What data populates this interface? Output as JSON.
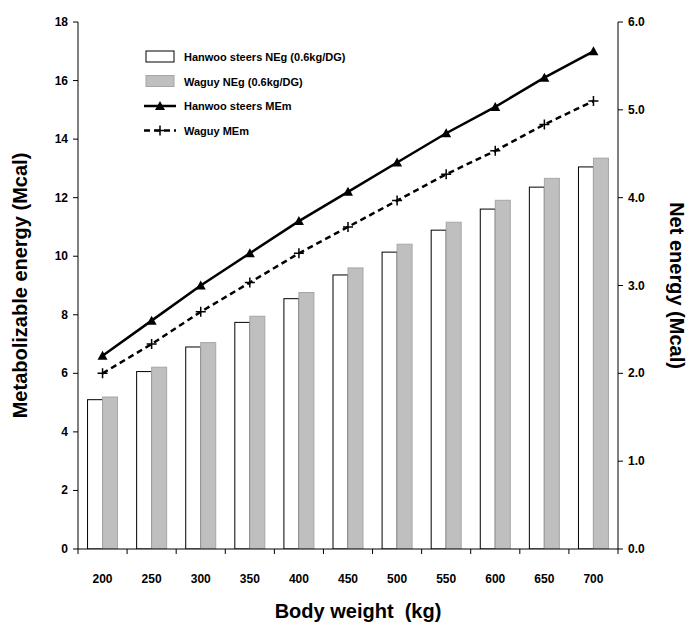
{
  "chart_data": {
    "type": "bar",
    "x_label": "Body weight  (kg)",
    "y_label": "Metabolizable energy (Mcal)",
    "y2_label": "Net energy (Mcal)",
    "categories": [
      "200",
      "250",
      "300",
      "350",
      "400",
      "450",
      "500",
      "550",
      "600",
      "650",
      "700"
    ],
    "ylim": [
      0,
      18
    ],
    "yticks": [
      0,
      2,
      4,
      6,
      8,
      10,
      12,
      14,
      16,
      18
    ],
    "y2lim": [
      0,
      6
    ],
    "y2ticks": [
      {
        "value": 0,
        "label": "0.0"
      },
      {
        "value": 1,
        "label": "1.0"
      },
      {
        "value": 2,
        "label": "2.0"
      },
      {
        "value": 3,
        "label": "3.0"
      },
      {
        "value": 4,
        "label": "4.0"
      },
      {
        "value": 5,
        "label": "5.0"
      },
      {
        "value": 6,
        "label": "6.0"
      }
    ],
    "grid": false,
    "legend": "upper left",
    "series": [
      {
        "name": "Hanwoo steers NEg (0.6kg/DG)",
        "type": "bar",
        "axis": "y2",
        "color": "#ffffff",
        "values": [
          1.7,
          2.02,
          2.3,
          2.58,
          2.85,
          3.12,
          3.38,
          3.63,
          3.87,
          4.12,
          4.35
        ]
      },
      {
        "name": "Waguy NEg (0.6kg/DG)",
        "type": "bar",
        "axis": "y2",
        "color": "#bfbfbf",
        "values": [
          1.73,
          2.07,
          2.35,
          2.65,
          2.92,
          3.2,
          3.47,
          3.72,
          3.97,
          4.22,
          4.45
        ]
      },
      {
        "name": "Hanwoo steers MEm",
        "type": "line",
        "color": "#000000",
        "marker": "triangle",
        "line_style": "solid",
        "values": [
          6.6,
          7.8,
          9.0,
          10.1,
          11.2,
          12.2,
          13.2,
          14.2,
          15.1,
          16.1,
          17.0
        ]
      },
      {
        "name": "Waguy MEm",
        "type": "line",
        "color": "#000000",
        "marker": "plus",
        "line_style": "dashed",
        "values": [
          6.0,
          7.0,
          8.1,
          9.1,
          10.1,
          11.0,
          11.9,
          12.8,
          13.6,
          14.5,
          15.3
        ]
      }
    ]
  }
}
